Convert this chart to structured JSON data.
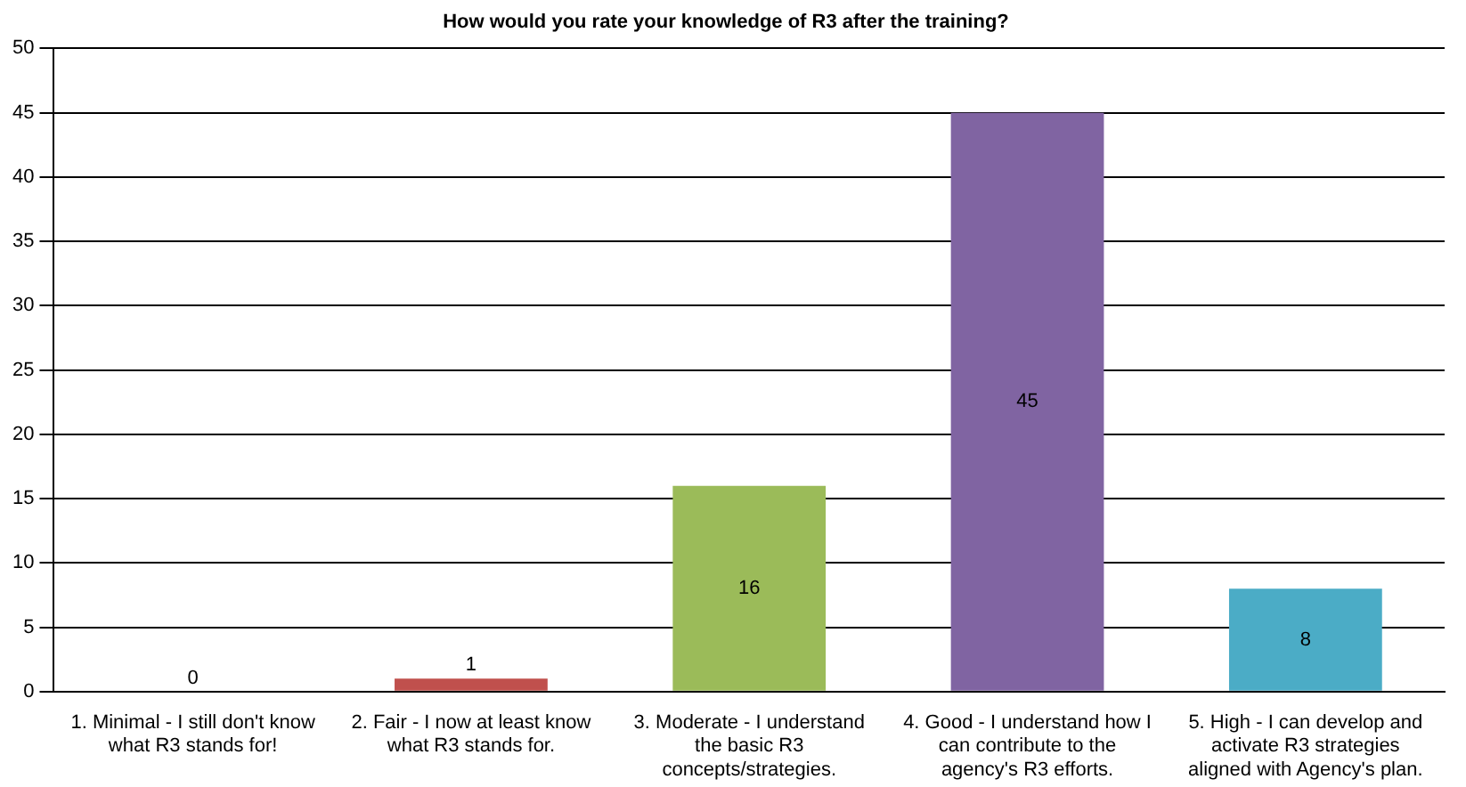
{
  "chart_data": {
    "type": "bar",
    "title": "How would you rate your knowledge of R3 after the training?",
    "categories": [
      "1. Minimal - I still don't know what R3 stands for!",
      "2. Fair - I now at least know what R3 stands for.",
      "3. Moderate - I understand the basic R3 concepts/strategies.",
      "4. Good - I understand how I can contribute to the agency's R3 efforts.",
      "5. High - I can develop and activate R3 strategies aligned with Agency's plan."
    ],
    "values": [
      0,
      1,
      16,
      45,
      8
    ],
    "colors": [
      "#4f81bd",
      "#c0504d",
      "#9bbb59",
      "#8064a2",
      "#4bacc6"
    ],
    "ylim": [
      0,
      50
    ],
    "yticks": [
      0,
      5,
      10,
      15,
      20,
      25,
      30,
      35,
      40,
      45,
      50
    ],
    "grid": "y",
    "legend": false,
    "data_labels": true
  }
}
